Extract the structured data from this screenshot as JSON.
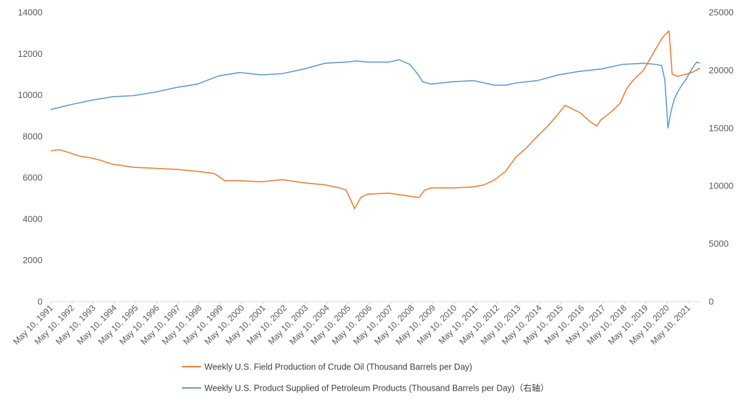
{
  "chart_data": {
    "type": "line",
    "x_unit": "year (weekly data, sampled)",
    "x_tick_labels": [
      "May 10, 1991",
      "May 10, 1992",
      "May 10, 1993",
      "May 10, 1994",
      "May 10, 1995",
      "May 10, 1996",
      "May 10, 1997",
      "May 10, 1998",
      "May 10, 1999",
      "May 10, 2000",
      "May 10, 2001",
      "May 10, 2002",
      "May 10, 2003",
      "May 10, 2004",
      "May 10, 2005",
      "May 10, 2006",
      "May 10, 2007",
      "May 10, 2008",
      "May 10, 2009",
      "May 10, 2010",
      "May 10, 2011",
      "May 10, 2012",
      "May 10, 2013",
      "May 10, 2014",
      "May 10, 2015",
      "May 10, 2016",
      "May 10, 2017",
      "May 10, 2018",
      "May 10, 2019",
      "May 10, 2020",
      "May 10, 2021"
    ],
    "x_range": [
      1991.1,
      2021.65
    ],
    "y_left": {
      "range": [
        0,
        14000
      ],
      "ticks": [
        0,
        2000,
        4000,
        6000,
        8000,
        10000,
        12000,
        14000
      ]
    },
    "y_right": {
      "range": [
        0,
        25000
      ],
      "ticks": [
        0,
        5000,
        10000,
        15000,
        20000,
        25000
      ]
    },
    "grid": false,
    "legend_position": "bottom",
    "series": [
      {
        "name": "Weekly U.S. Field Production of Crude Oil  (Thousand Barrels per Day)",
        "axis": "left",
        "color": "#ED7D31",
        "x": [
          1991.1,
          1991.5,
          1992.0,
          1992.4,
          1993.0,
          1993.4,
          1994.0,
          1995.0,
          1996.0,
          1997.0,
          1998.0,
          1998.8,
          1999.3,
          2000.0,
          2001.0,
          2002.0,
          2003.0,
          2004.0,
          2004.7,
          2005.0,
          2005.4,
          2005.7,
          2006.0,
          2007.0,
          2007.7,
          2008.0,
          2008.3,
          2008.45,
          2008.7,
          2009.0,
          2010.0,
          2011.0,
          2011.5,
          2012.0,
          2012.5,
          2013.0,
          2013.5,
          2014.0,
          2014.5,
          2015.0,
          2015.3,
          2015.5,
          2016.0,
          2016.5,
          2016.8,
          2017.0,
          2017.5,
          2017.9,
          2018.2,
          2018.5,
          2019.0,
          2019.5,
          2019.9,
          2020.2,
          2020.35,
          2020.6,
          2021.0,
          2021.3,
          2021.65
        ],
        "values": [
          7300,
          7350,
          7200,
          7050,
          6950,
          6850,
          6650,
          6500,
          6450,
          6400,
          6300,
          6200,
          5850,
          5850,
          5800,
          5900,
          5750,
          5650,
          5500,
          5400,
          4500,
          5050,
          5200,
          5250,
          5150,
          5100,
          5050,
          5050,
          5400,
          5500,
          5500,
          5550,
          5650,
          5900,
          6300,
          7000,
          7450,
          8000,
          8500,
          9100,
          9500,
          9400,
          9150,
          8700,
          8500,
          8800,
          9200,
          9600,
          10300,
          10700,
          11200,
          12100,
          12800,
          13100,
          11000,
          10900,
          11000,
          11100,
          11300
        ]
      },
      {
        "name": "Weekly U.S. Product Supplied of Petroleum Products  (Thousand Barrels per Day)（右轴）",
        "axis": "right",
        "color": "#5B9BD5",
        "x": [
          1991.1,
          1992.0,
          1993.0,
          1994.0,
          1995.0,
          1996.0,
          1997.0,
          1998.0,
          1999.0,
          2000.0,
          2001.0,
          2002.0,
          2003.0,
          2004.0,
          2005.0,
          2005.5,
          2006.0,
          2007.0,
          2007.5,
          2008.0,
          2008.4,
          2008.6,
          2009.0,
          2010.0,
          2011.0,
          2012.0,
          2012.5,
          2013.0,
          2014.0,
          2015.0,
          2016.0,
          2017.0,
          2018.0,
          2019.0,
          2019.6,
          2019.85,
          2020.0,
          2020.15,
          2020.3,
          2020.45,
          2020.6,
          2020.8,
          2021.0,
          2021.3,
          2021.5,
          2021.65
        ],
        "values": [
          16600,
          17000,
          17400,
          17700,
          17800,
          18100,
          18500,
          18800,
          19500,
          19800,
          19600,
          19700,
          20100,
          20600,
          20700,
          20800,
          20700,
          20700,
          20900,
          20500,
          19600,
          19000,
          18800,
          19000,
          19100,
          18700,
          18700,
          18900,
          19100,
          19600,
          19900,
          20100,
          20500,
          20600,
          20500,
          20400,
          19200,
          15000,
          16500,
          17500,
          18100,
          18700,
          19200,
          20200,
          20700,
          20600
        ]
      }
    ]
  }
}
